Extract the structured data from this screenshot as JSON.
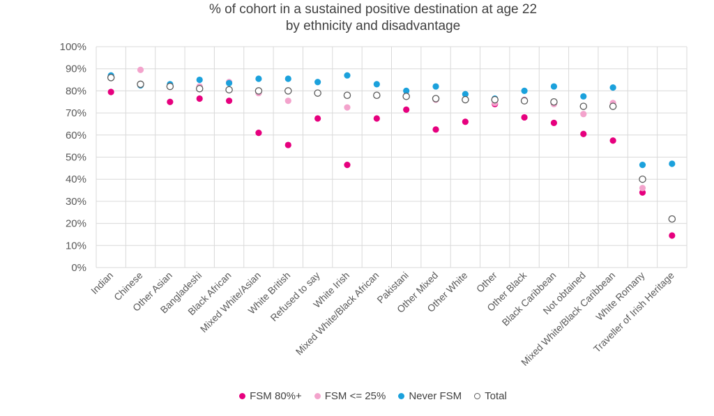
{
  "chart_data": {
    "type": "scatter",
    "title": "% of cohort in a sustained positive destination at age 22",
    "subtitle": "by ethnicity and disadvantage",
    "xlabel": "",
    "ylabel": "",
    "ylim": [
      0,
      100
    ],
    "ytick_labels": [
      "0%",
      "10%",
      "20%",
      "30%",
      "40%",
      "50%",
      "60%",
      "70%",
      "80%",
      "90%",
      "100%"
    ],
    "grid": true,
    "legend_position": "bottom",
    "categories": [
      "Indian",
      "Chinese",
      "Other Asian",
      "Bangladeshi",
      "Black African",
      "Mixed White/Asian",
      "White British",
      "Refused to say",
      "White Irish",
      "Mixed White/Black African",
      "Pakistani",
      "Other Mixed",
      "Other White",
      "Other",
      "Other Black",
      "Black Caribbean",
      "Not obtained",
      "Mixed White/Black Caribbean",
      "White Romany",
      "Traveller of Irish Heritage"
    ],
    "series": [
      {
        "name": "FSM 80%+",
        "color": "#e6007e",
        "hollow": false,
        "values": [
          79.5,
          null,
          75,
          76.5,
          75.5,
          61,
          55.5,
          67.5,
          46.5,
          67.5,
          71.5,
          62.5,
          66,
          74,
          68,
          65.5,
          60.5,
          57.5,
          34,
          14.5
        ]
      },
      {
        "name": "FSM <= 25%",
        "color": "#f3a3cc",
        "hollow": false,
        "values": [
          86,
          89.5,
          82,
          82,
          84,
          79,
          75.5,
          null,
          72.5,
          78,
          78,
          76,
          76,
          74.5,
          76,
          74,
          69.5,
          74.5,
          36,
          null
        ]
      },
      {
        "name": "Never FSM",
        "color": "#1ba1dc",
        "hollow": false,
        "values": [
          87,
          82.5,
          83,
          85,
          83.5,
          85.5,
          85.5,
          84,
          87,
          83,
          80,
          82,
          78.5,
          76.5,
          80,
          82,
          77.5,
          81.5,
          46.5,
          47
        ]
      },
      {
        "name": "Total",
        "color": "#595959",
        "hollow": true,
        "values": [
          86,
          83,
          82,
          81,
          80.5,
          80,
          80,
          79,
          78,
          78,
          77.5,
          76.5,
          76,
          76,
          75.5,
          75,
          73,
          73,
          40,
          22
        ]
      }
    ]
  }
}
